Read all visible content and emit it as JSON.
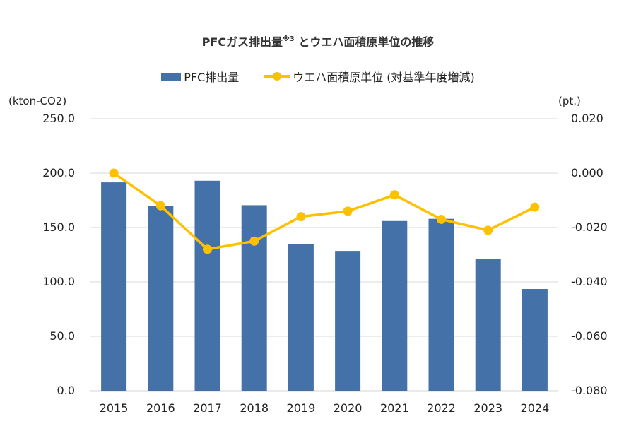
{
  "chart_data": {
    "type": "bar+line",
    "title_main": "PFCガス排出量",
    "title_sup": "※3",
    "title_tail": "とウエハ面積原単位の推移",
    "categories": [
      "2015",
      "2016",
      "2017",
      "2018",
      "2019",
      "2020",
      "2021",
      "2022",
      "2023",
      "2024"
    ],
    "series": [
      {
        "name": "PFC排出量",
        "type": "bar",
        "axis": "left",
        "color": "#4472A8",
        "values": [
          191.5,
          169.5,
          193.0,
          170.5,
          135.0,
          128.5,
          156.0,
          158.0,
          121.0,
          93.5
        ]
      },
      {
        "name": "ウエハ面積原単位 (対基準年度増減)",
        "type": "line",
        "axis": "right",
        "color": "#FFC000",
        "values": [
          0.0,
          -0.012,
          -0.028,
          -0.025,
          -0.016,
          -0.014,
          -0.008,
          -0.017,
          -0.021,
          -0.0125
        ]
      }
    ],
    "y_left": {
      "unit_label": "(kton-CO2)",
      "min": 0,
      "max": 250,
      "ticks": [
        "0.0",
        "50.0",
        "100.0",
        "150.0",
        "200.0",
        "250.0"
      ]
    },
    "y_right": {
      "unit_label": "(pt.)",
      "min": -0.08,
      "max": 0.02,
      "ticks": [
        "-0.080",
        "-0.060",
        "-0.040",
        "-0.020",
        "0.000",
        "0.020"
      ]
    },
    "grid": true,
    "legend_position": "top-center",
    "gridline_color": "#D9D9D9",
    "axis_color": "#595959"
  }
}
